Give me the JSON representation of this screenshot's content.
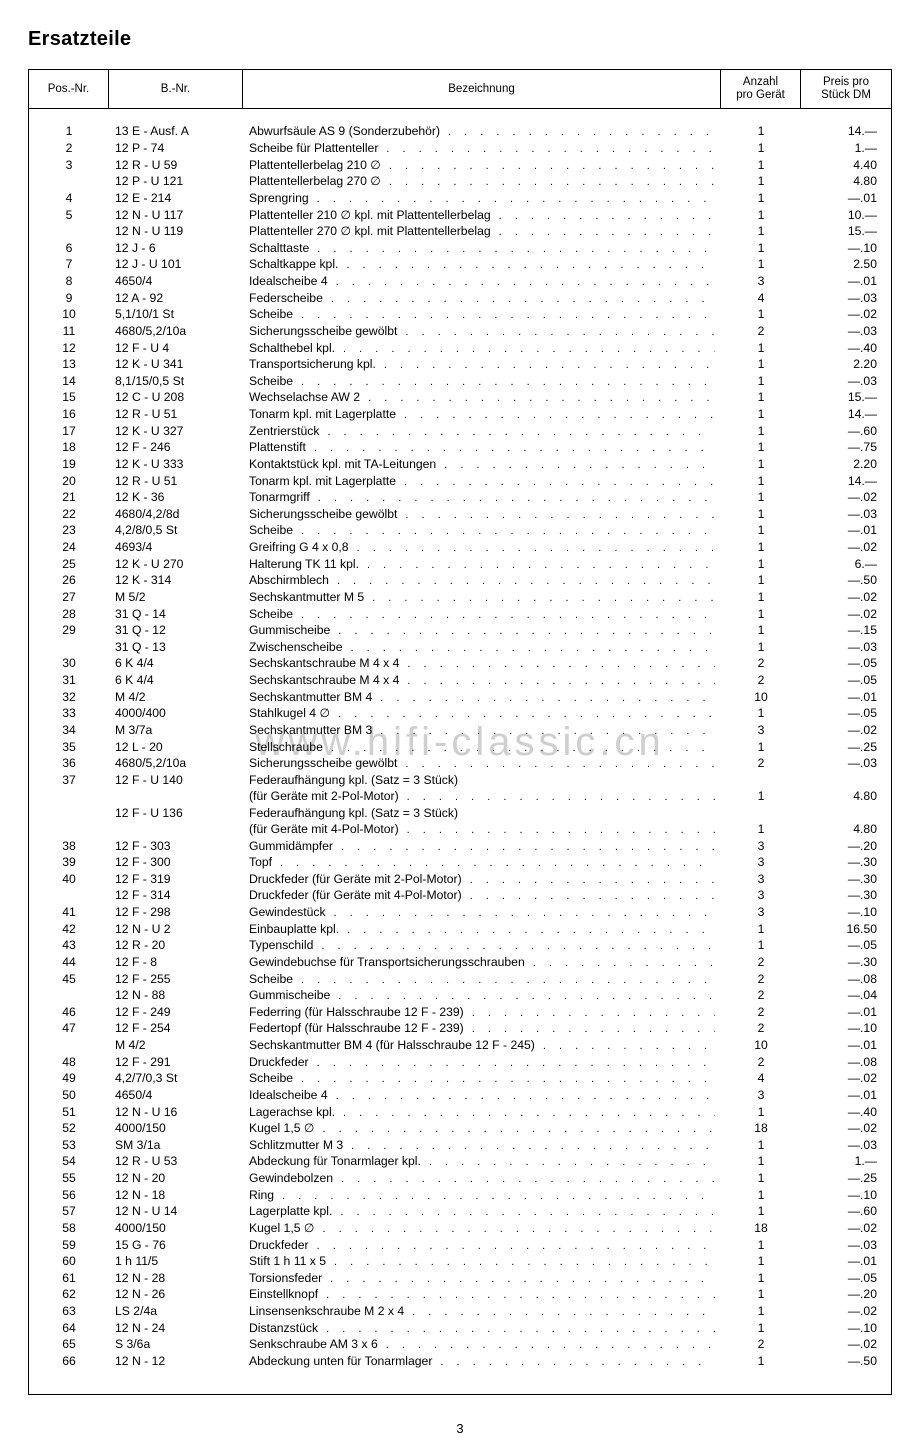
{
  "page_title": "Ersatzteile",
  "page_number": "3",
  "watermark": "www.hifi-classic.cn",
  "columns": {
    "pos": "Pos.-Nr.",
    "bnr": "B.-Nr.",
    "bez": "Bezeichnung",
    "anz": "Anzahl\npro Gerät",
    "preis": "Preis pro\nStück DM"
  },
  "rows": [
    {
      "pos": "1",
      "bnr": "13 E - Ausf. A",
      "bez": "Abwurfsäule AS 9 (Sonderzubehör)",
      "anz": "1",
      "pr": "14.—"
    },
    {
      "pos": "2",
      "bnr": "12 P - 74",
      "bez": "Scheibe für Plattenteller",
      "anz": "1",
      "pr": "1.—"
    },
    {
      "pos": "3",
      "bnr": "12 R - U 59",
      "bez": "Plattentellerbelag 210 ∅",
      "anz": "1",
      "pr": "4.40"
    },
    {
      "pos": "",
      "bnr": "12 P - U 121",
      "bez": "Plattentellerbelag 270 ∅",
      "anz": "1",
      "pr": "4.80"
    },
    {
      "pos": "4",
      "bnr": "12 E - 214",
      "bez": "Sprengring",
      "anz": "1",
      "pr": "—.01"
    },
    {
      "pos": "5",
      "bnr": "12 N - U 117",
      "bez": "Plattenteller 210 ∅ kpl. mit Plattentellerbelag",
      "anz": "1",
      "pr": "10.—"
    },
    {
      "pos": "",
      "bnr": "12 N - U 119",
      "bez": "Plattenteller 270 ∅ kpl. mit Plattentellerbelag",
      "anz": "1",
      "pr": "15.—"
    },
    {
      "pos": "6",
      "bnr": "12 J - 6",
      "bez": "Schalttaste",
      "anz": "1",
      "pr": "—.10"
    },
    {
      "pos": "7",
      "bnr": "12 J - U 101",
      "bez": "Schaltkappe kpl.",
      "anz": "1",
      "pr": "2.50"
    },
    {
      "pos": "8",
      "bnr": "4650/4",
      "bez": "Idealscheibe 4",
      "anz": "3",
      "pr": "—.01"
    },
    {
      "pos": "9",
      "bnr": "12 A - 92",
      "bez": "Federscheibe",
      "anz": "4",
      "pr": "—.03"
    },
    {
      "pos": "10",
      "bnr": "5,1/10/1 St",
      "bez": "Scheibe",
      "anz": "1",
      "pr": "—.02"
    },
    {
      "pos": "11",
      "bnr": "4680/5,2/10a",
      "bez": "Sicherungsscheibe gewölbt",
      "anz": "2",
      "pr": "—.03"
    },
    {
      "pos": "12",
      "bnr": "12 F - U 4",
      "bez": "Schalthebel kpl.",
      "anz": "1",
      "pr": "—.40"
    },
    {
      "pos": "13",
      "bnr": "12 K - U 341",
      "bez": "Transportsicherung kpl.",
      "anz": "1",
      "pr": "2.20"
    },
    {
      "pos": "14",
      "bnr": "8,1/15/0,5 St",
      "bez": "Scheibe",
      "anz": "1",
      "pr": "—.03"
    },
    {
      "pos": "15",
      "bnr": "12 C - U 208",
      "bez": "Wechselachse AW 2",
      "anz": "1",
      "pr": "15.—"
    },
    {
      "pos": "16",
      "bnr": "12 R - U 51",
      "bez": "Tonarm kpl. mit Lagerplatte",
      "anz": "1",
      "pr": "14.—"
    },
    {
      "pos": "17",
      "bnr": "12 K - U 327",
      "bez": "Zentrierstück",
      "anz": "1",
      "pr": "—.60"
    },
    {
      "pos": "18",
      "bnr": "12 F - 246",
      "bez": "Plattenstift",
      "anz": "1",
      "pr": "—.75"
    },
    {
      "pos": "19",
      "bnr": "12 K - U 333",
      "bez": "Kontaktstück kpl. mit TA-Leitungen",
      "anz": "1",
      "pr": "2.20"
    },
    {
      "pos": "20",
      "bnr": "12 R - U 51",
      "bez": "Tonarm kpl. mit Lagerplatte",
      "anz": "1",
      "pr": "14.—"
    },
    {
      "pos": "21",
      "bnr": "12 K - 36",
      "bez": "Tonarmgriff",
      "anz": "1",
      "pr": "—.02"
    },
    {
      "pos": "22",
      "bnr": "4680/4,2/8d",
      "bez": "Sicherungsscheibe gewölbt",
      "anz": "1",
      "pr": "—.03"
    },
    {
      "pos": "23",
      "bnr": "4,2/8/0,5 St",
      "bez": "Scheibe",
      "anz": "1",
      "pr": "—.01"
    },
    {
      "pos": "24",
      "bnr": "4693/4",
      "bez": "Greifring G 4 x 0,8",
      "anz": "1",
      "pr": "—.02"
    },
    {
      "pos": "25",
      "bnr": "12 K - U 270",
      "bez": "Halterung TK 11 kpl.",
      "anz": "1",
      "pr": "6.—"
    },
    {
      "pos": "26",
      "bnr": "12 K - 314",
      "bez": "Abschirmblech",
      "anz": "1",
      "pr": "—.50"
    },
    {
      "pos": "27",
      "bnr": "M 5/2",
      "bez": "Sechskantmutter M 5",
      "anz": "1",
      "pr": "—.02"
    },
    {
      "pos": "28",
      "bnr": "31 Q - 14",
      "bez": "Scheibe",
      "anz": "1",
      "pr": "—.02"
    },
    {
      "pos": "29",
      "bnr": "31 Q - 12",
      "bez": "Gummischeibe",
      "anz": "1",
      "pr": "—.15"
    },
    {
      "pos": "",
      "bnr": "31 Q - 13",
      "bez": "Zwischenscheibe",
      "anz": "1",
      "pr": "—.03"
    },
    {
      "pos": "30",
      "bnr": "6 K 4/4",
      "bez": "Sechskantschraube M 4 x 4",
      "anz": "2",
      "pr": "—.05"
    },
    {
      "pos": "31",
      "bnr": "6 K 4/4",
      "bez": "Sechskantschraube M 4 x 4",
      "anz": "2",
      "pr": "—.05"
    },
    {
      "pos": "32",
      "bnr": "M 4/2",
      "bez": "Sechskantmutter BM 4",
      "anz": "10",
      "pr": "—.01"
    },
    {
      "pos": "33",
      "bnr": "4000/400",
      "bez": "Stahlkugel 4 ∅",
      "anz": "1",
      "pr": "—.05"
    },
    {
      "pos": "34",
      "bnr": "M 3/7a",
      "bez": "Sechskantmutter BM 3",
      "anz": "3",
      "pr": "—.02"
    },
    {
      "pos": "35",
      "bnr": "12 L - 20",
      "bez": "Stellschraube",
      "anz": "1",
      "pr": "—.25"
    },
    {
      "pos": "36",
      "bnr": "4680/5,2/10a",
      "bez": "Sicherungsscheibe gewölbt",
      "anz": "2",
      "pr": "—.03"
    },
    {
      "pos": "37",
      "bnr": "12 F - U 140",
      "bez": "Federaufhängung kpl. (Satz = 3 Stück)",
      "anz": "",
      "pr": "",
      "noDots": true
    },
    {
      "pos": "",
      "bnr": "",
      "bez": "(für Geräte mit 2-Pol-Motor)",
      "anz": "1",
      "pr": "4.80"
    },
    {
      "pos": "",
      "bnr": "12 F - U 136",
      "bez": "Federaufhängung kpl. (Satz = 3 Stück)",
      "anz": "",
      "pr": "",
      "noDots": true
    },
    {
      "pos": "",
      "bnr": "",
      "bez": "(für Geräte mit 4-Pol-Motor)",
      "anz": "1",
      "pr": "4.80"
    },
    {
      "pos": "38",
      "bnr": "12 F - 303",
      "bez": "Gummidämpfer",
      "anz": "3",
      "pr": "—.20"
    },
    {
      "pos": "39",
      "bnr": "12 F - 300",
      "bez": "Topf",
      "anz": "3",
      "pr": "—.30"
    },
    {
      "pos": "40",
      "bnr": "12 F - 319",
      "bez": "Druckfeder (für Geräte mit 2-Pol-Motor)",
      "anz": "3",
      "pr": "—.30"
    },
    {
      "pos": "",
      "bnr": "12 F - 314",
      "bez": "Druckfeder (für Geräte mit 4-Pol-Motor)",
      "anz": "3",
      "pr": "—.30"
    },
    {
      "pos": "41",
      "bnr": "12 F - 298",
      "bez": "Gewindestück",
      "anz": "3",
      "pr": "—.10"
    },
    {
      "pos": "42",
      "bnr": "12 N - U 2",
      "bez": "Einbauplatte kpl.",
      "anz": "1",
      "pr": "16.50"
    },
    {
      "pos": "43",
      "bnr": "12 R - 20",
      "bez": "Typenschild",
      "anz": "1",
      "pr": "—.05"
    },
    {
      "pos": "44",
      "bnr": "12 F - 8",
      "bez": "Gewindebuchse für Transportsicherungsschrauben",
      "anz": "2",
      "pr": "—.30"
    },
    {
      "pos": "45",
      "bnr": "12 F - 255",
      "bez": "Scheibe",
      "anz": "2",
      "pr": "—.08"
    },
    {
      "pos": "",
      "bnr": "12 N - 88",
      "bez": "Gummischeibe",
      "anz": "2",
      "pr": "—.04"
    },
    {
      "pos": "46",
      "bnr": "12 F - 249",
      "bez": "Federring (für Halsschraube 12 F - 239)",
      "anz": "2",
      "pr": "—.01"
    },
    {
      "pos": "47",
      "bnr": "12 F - 254",
      "bez": "Federtopf (für Halsschraube 12 F - 239)",
      "anz": "2",
      "pr": "—.10"
    },
    {
      "pos": "",
      "bnr": "M 4/2",
      "bez": "Sechskantmutter BM 4 (für Halsschraube 12 F - 245)",
      "anz": "10",
      "pr": "—.01"
    },
    {
      "pos": "48",
      "bnr": "12 F - 291",
      "bez": "Druckfeder",
      "anz": "2",
      "pr": "—.08"
    },
    {
      "pos": "49",
      "bnr": "4,2/7/0,3 St",
      "bez": "Scheibe",
      "anz": "4",
      "pr": "—.02"
    },
    {
      "pos": "50",
      "bnr": "4650/4",
      "bez": "Idealscheibe 4",
      "anz": "3",
      "pr": "—.01"
    },
    {
      "pos": "51",
      "bnr": "12 N - U 16",
      "bez": "Lagerachse kpl.",
      "anz": "1",
      "pr": "—.40"
    },
    {
      "pos": "52",
      "bnr": "4000/150",
      "bez": "Kugel 1,5 ∅",
      "anz": "18",
      "pr": "—.02"
    },
    {
      "pos": "53",
      "bnr": "SM 3/1a",
      "bez": "Schlitzmutter M 3",
      "anz": "1",
      "pr": "—.03"
    },
    {
      "pos": "54",
      "bnr": "12 R - U 53",
      "bez": "Abdeckung für Tonarmlager kpl.",
      "anz": "1",
      "pr": "1.—"
    },
    {
      "pos": "55",
      "bnr": "12 N - 20",
      "bez": "Gewindebolzen",
      "anz": "1",
      "pr": "—.25"
    },
    {
      "pos": "56",
      "bnr": "12 N - 18",
      "bez": "Ring",
      "anz": "1",
      "pr": "—.10"
    },
    {
      "pos": "57",
      "bnr": "12 N - U 14",
      "bez": "Lagerplatte kpl.",
      "anz": "1",
      "pr": "—.60"
    },
    {
      "pos": "58",
      "bnr": "4000/150",
      "bez": "Kugel 1,5 ∅",
      "anz": "18",
      "pr": "—.02"
    },
    {
      "pos": "59",
      "bnr": "15 G - 76",
      "bez": "Druckfeder",
      "anz": "1",
      "pr": "—.03"
    },
    {
      "pos": "60",
      "bnr": "1 h 11/5",
      "bez": "Stift 1 h 11 x 5",
      "anz": "1",
      "pr": "—.01"
    },
    {
      "pos": "61",
      "bnr": "12 N - 28",
      "bez": "Torsionsfeder",
      "anz": "1",
      "pr": "—.05"
    },
    {
      "pos": "62",
      "bnr": "12 N - 26",
      "bez": "Einstellknopf",
      "anz": "1",
      "pr": "—.20"
    },
    {
      "pos": "63",
      "bnr": "LS 2/4a",
      "bez": "Linsensenkschraube M 2 x 4",
      "anz": "1",
      "pr": "—.02"
    },
    {
      "pos": "64",
      "bnr": "12 N - 24",
      "bez": "Distanzstück",
      "anz": "1",
      "pr": "—.10"
    },
    {
      "pos": "65",
      "bnr": "S 3/6a",
      "bez": "Senkschraube AM 3 x 6",
      "anz": "2",
      "pr": "—.02"
    },
    {
      "pos": "66",
      "bnr": "12 N - 12",
      "bez": "Abdeckung unten für Tonarmlager",
      "anz": "1",
      "pr": "—.50"
    }
  ]
}
